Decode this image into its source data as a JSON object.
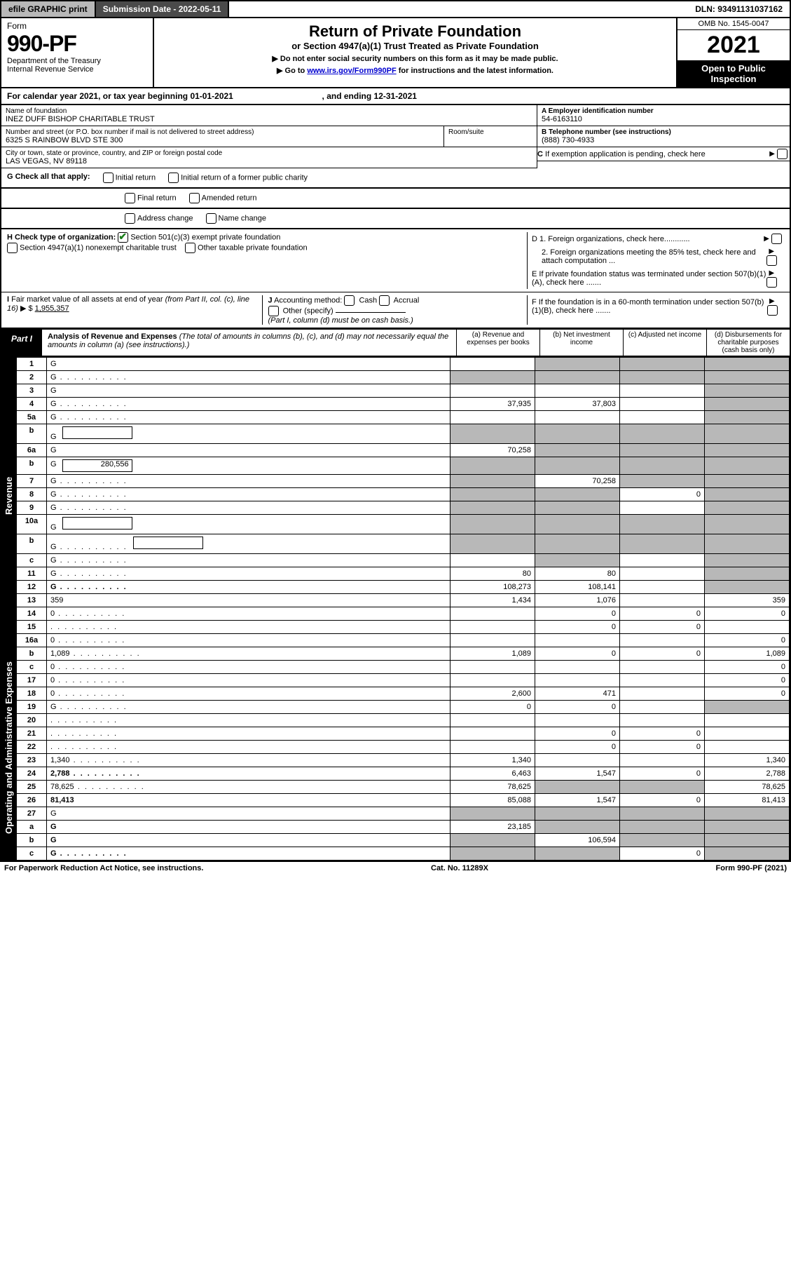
{
  "topbar": {
    "efile": "efile GRAPHIC print",
    "submission": "Submission Date - 2022-05-11",
    "dln": "DLN: 93491131037162"
  },
  "header": {
    "form_label": "Form",
    "form_number": "990-PF",
    "dept1": "Department of the Treasury",
    "dept2": "Internal Revenue Service",
    "title": "Return of Private Foundation",
    "subtitle": "or Section 4947(a)(1) Trust Treated as Private Foundation",
    "instr1": "▶ Do not enter social security numbers on this form as it may be made public.",
    "instr2_pre": "▶ Go to ",
    "instr2_link": "www.irs.gov/Form990PF",
    "instr2_post": " for instructions and the latest information.",
    "omb": "OMB No. 1545-0047",
    "year": "2021",
    "open": "Open to Public Inspection"
  },
  "calendar": {
    "text_pre": "For calendar year 2021, or tax year beginning ",
    "begin": "01-01-2021",
    "text_mid": " , and ending ",
    "end": "12-31-2021"
  },
  "entity": {
    "name_label": "Name of foundation",
    "name": "INEZ DUFF BISHOP CHARITABLE TRUST",
    "addr_label": "Number and street (or P.O. box number if mail is not delivered to street address)",
    "addr": "6325 S RAINBOW BLVD STE 300",
    "room_label": "Room/suite",
    "room": "",
    "city_label": "City or town, state or province, country, and ZIP or foreign postal code",
    "city": "LAS VEGAS, NV  89118",
    "ein_label": "A Employer identification number",
    "ein": "54-6163110",
    "phone_label": "B Telephone number (see instructions)",
    "phone": "(888) 730-4933",
    "c_label": "C If exemption application is pending, check here",
    "d1": "D 1. Foreign organizations, check here............",
    "d2": "2. Foreign organizations meeting the 85% test, check here and attach computation ...",
    "e": "E  If private foundation status was terminated under section 507(b)(1)(A), check here .......",
    "f": "F  If the foundation is in a 60-month termination under section 507(b)(1)(B), check here .......",
    "g_label": "G Check all that apply:",
    "g_opts": [
      "Initial return",
      "Initial return of a former public charity",
      "Final return",
      "Amended return",
      "Address change",
      "Name change"
    ],
    "h_label": "H Check type of organization:",
    "h1": "Section 501(c)(3) exempt private foundation",
    "h2": "Section 4947(a)(1) nonexempt charitable trust",
    "h3": "Other taxable private foundation",
    "i_label": "I Fair market value of all assets at end of year (from Part II, col. (c), line 16) ▶ $",
    "i_val": "1,955,357",
    "j_label": "J Accounting method:",
    "j_opts": [
      "Cash",
      "Accrual"
    ],
    "j_other": "Other (specify)",
    "j_note": "(Part I, column (d) must be on cash basis.)"
  },
  "part1": {
    "label": "Part I",
    "title": "Analysis of Revenue and Expenses",
    "note": "(The total of amounts in columns (b), (c), and (d) may not necessarily equal the amounts in column (a) (see instructions).)",
    "col_a": "(a) Revenue and expenses per books",
    "col_b": "(b) Net investment income",
    "col_c": "(c) Adjusted net income",
    "col_d": "(d) Disbursements for charitable purposes (cash basis only)"
  },
  "side_rev": "Revenue",
  "side_exp": "Operating and Administrative Expenses",
  "rows": [
    {
      "n": "1",
      "d": "G",
      "a": "",
      "b": "G",
      "c": "G"
    },
    {
      "n": "2",
      "d": "G",
      "a": "G",
      "b": "G",
      "c": "G",
      "dotted": true,
      "bold_not": true
    },
    {
      "n": "3",
      "d": "G",
      "a": "",
      "b": "",
      "c": ""
    },
    {
      "n": "4",
      "d": "G",
      "a": "37,935",
      "b": "37,803",
      "c": "",
      "dotted": true
    },
    {
      "n": "5a",
      "d": "G",
      "a": "",
      "b": "",
      "c": "",
      "dotted": true
    },
    {
      "n": "b",
      "d": "G",
      "a": "G",
      "b": "G",
      "c": "G",
      "inline": true
    },
    {
      "n": "6a",
      "d": "G",
      "a": "70,258",
      "b": "G",
      "c": "G"
    },
    {
      "n": "b",
      "d": "G",
      "a": "G",
      "b": "G",
      "c": "G",
      "inline": true,
      "inline_val": "280,556"
    },
    {
      "n": "7",
      "d": "G",
      "a": "G",
      "b": "70,258",
      "c": "G",
      "dotted": true
    },
    {
      "n": "8",
      "d": "G",
      "a": "G",
      "b": "G",
      "c": "0",
      "dotted": true
    },
    {
      "n": "9",
      "d": "G",
      "a": "G",
      "b": "G",
      "c": "",
      "dotted": true
    },
    {
      "n": "10a",
      "d": "G",
      "a": "G",
      "b": "G",
      "c": "G",
      "inline": true
    },
    {
      "n": "b",
      "d": "G",
      "a": "G",
      "b": "G",
      "c": "G",
      "inline": true,
      "dotted": true
    },
    {
      "n": "c",
      "d": "G",
      "a": "",
      "b": "G",
      "c": "",
      "dotted": true
    },
    {
      "n": "11",
      "d": "G",
      "a": "80",
      "b": "80",
      "c": "",
      "dotted": true
    },
    {
      "n": "12",
      "d": "G",
      "a": "108,273",
      "b": "108,141",
      "c": "",
      "bold": true,
      "dotted": true
    },
    {
      "n": "13",
      "d": "359",
      "a": "1,434",
      "b": "1,076",
      "c": ""
    },
    {
      "n": "14",
      "d": "0",
      "a": "",
      "b": "0",
      "c": "0",
      "dotted": true
    },
    {
      "n": "15",
      "d": "",
      "a": "",
      "b": "0",
      "c": "0",
      "dotted": true
    },
    {
      "n": "16a",
      "d": "0",
      "a": "",
      "b": "",
      "c": "",
      "dotted": true
    },
    {
      "n": "b",
      "d": "1,089",
      "a": "1,089",
      "b": "0",
      "c": "0",
      "dotted": true
    },
    {
      "n": "c",
      "d": "0",
      "a": "",
      "b": "",
      "c": "",
      "dotted": true
    },
    {
      "n": "17",
      "d": "0",
      "a": "",
      "b": "",
      "c": "",
      "dotted": true
    },
    {
      "n": "18",
      "d": "0",
      "a": "2,600",
      "b": "471",
      "c": "",
      "dotted": true
    },
    {
      "n": "19",
      "d": "G",
      "a": "0",
      "b": "0",
      "c": "",
      "dotted": true
    },
    {
      "n": "20",
      "d": "",
      "a": "",
      "b": "",
      "c": "",
      "dotted": true
    },
    {
      "n": "21",
      "d": "",
      "a": "",
      "b": "0",
      "c": "0",
      "dotted": true
    },
    {
      "n": "22",
      "d": "",
      "a": "",
      "b": "0",
      "c": "0",
      "dotted": true
    },
    {
      "n": "23",
      "d": "1,340",
      "a": "1,340",
      "b": "",
      "c": "",
      "dotted": true
    },
    {
      "n": "24",
      "d": "2,788",
      "a": "6,463",
      "b": "1,547",
      "c": "0",
      "bold": true,
      "dotted": true
    },
    {
      "n": "25",
      "d": "78,625",
      "a": "78,625",
      "b": "G",
      "c": "G",
      "dotted": true
    },
    {
      "n": "26",
      "d": "81,413",
      "a": "85,088",
      "b": "1,547",
      "c": "0",
      "bold": true
    },
    {
      "n": "27",
      "d": "G",
      "a": "G",
      "b": "G",
      "c": "G"
    },
    {
      "n": "a",
      "d": "G",
      "a": "23,185",
      "b": "G",
      "c": "G",
      "bold": true
    },
    {
      "n": "b",
      "d": "G",
      "a": "G",
      "b": "106,594",
      "c": "G",
      "bold": true
    },
    {
      "n": "c",
      "d": "G",
      "a": "G",
      "b": "G",
      "c": "0",
      "bold": true,
      "dotted": true
    }
  ],
  "footer": {
    "left": "For Paperwork Reduction Act Notice, see instructions.",
    "mid": "Cat. No. 11289X",
    "right": "Form 990-PF (2021)"
  },
  "colors": {
    "grey": "#b8b8b8",
    "darkgrey": "#4a4a4a",
    "link": "#0000d0",
    "check": "#1a7f1a"
  }
}
